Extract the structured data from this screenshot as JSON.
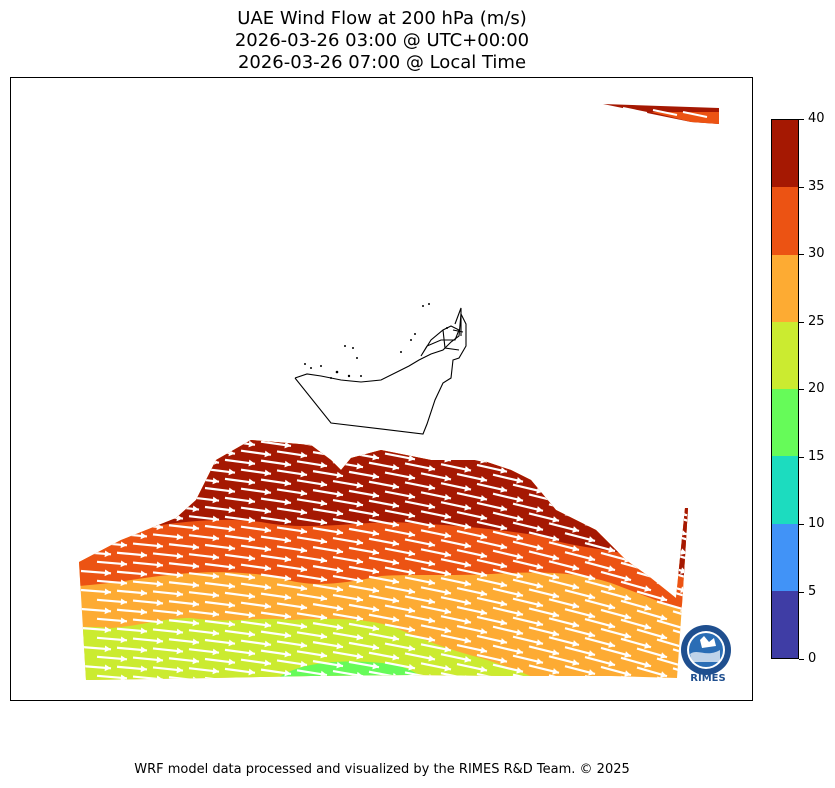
{
  "title": {
    "line1": "UAE Wind Flow at 200 hPa (m/s)",
    "line2": "2026-03-26 03:00 @ UTC+00:00",
    "line3": "2026-03-26 07:00 @ Local Time"
  },
  "colorbar": {
    "levels": [
      0,
      5,
      10,
      15,
      20,
      25,
      30,
      35,
      40
    ],
    "labels": [
      "0",
      "5",
      "10",
      "15",
      "20",
      "25",
      "30",
      "35",
      "40"
    ],
    "colors": [
      "#3f3da5",
      "#4193f7",
      "#1cdcbf",
      "#66fb59",
      "#cbeb30",
      "#fdab33",
      "#ec5313",
      "#a51802"
    ]
  },
  "map": {
    "region": "UAE",
    "arrow_color": "#ffffff",
    "boundary_color": "#000000"
  },
  "logo": {
    "text": "RIMES",
    "icon": "rimes-logo-icon"
  },
  "footer": {
    "credit": "WRF model data processed and visualized by the RIMES R&D Team. © 2025"
  }
}
